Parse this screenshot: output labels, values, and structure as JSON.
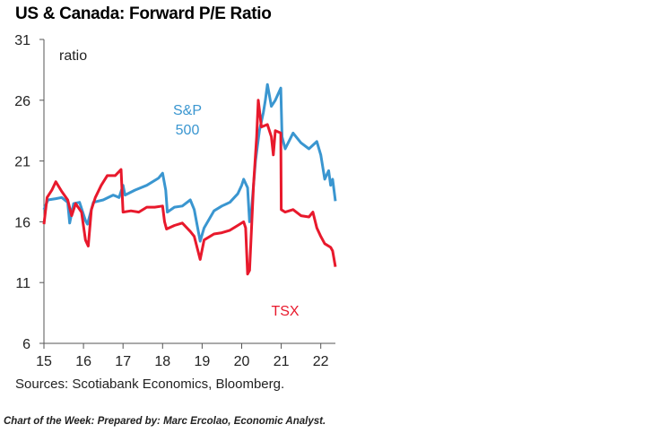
{
  "chart_data": {
    "type": "line",
    "title": "US & Canada: Forward P/E Ratio",
    "ylabel": "ratio",
    "xlabel": "",
    "ylim": [
      6,
      31
    ],
    "yticks": [
      6,
      11,
      16,
      21,
      26,
      31
    ],
    "xlim": [
      2015,
      2022.37
    ],
    "xticks": [
      2015,
      2016,
      2017,
      2018,
      2019,
      2020,
      2021,
      2022
    ],
    "xtick_labels": [
      "15",
      "16",
      "17",
      "18",
      "19",
      "20",
      "21",
      "22"
    ],
    "grid": false,
    "series": [
      {
        "name": "S&P 500",
        "label_lines": [
          "S&P",
          "500"
        ],
        "color": "#3a96d0",
        "x": [
          2015.0,
          2015.1,
          2015.3,
          2015.45,
          2015.6,
          2015.65,
          2015.75,
          2015.9,
          2016.05,
          2016.1,
          2016.25,
          2016.5,
          2016.75,
          2016.9,
          2017.0,
          2017.05,
          2017.3,
          2017.6,
          2017.9,
          2018.0,
          2018.08,
          2018.12,
          2018.3,
          2018.5,
          2018.7,
          2018.8,
          2018.95,
          2019.05,
          2019.3,
          2019.5,
          2019.7,
          2019.9,
          2020.0,
          2020.05,
          2020.15,
          2020.2,
          2020.25,
          2020.35,
          2020.45,
          2020.55,
          2020.6,
          2020.65,
          2020.75,
          2020.85,
          2020.99,
          2021.02,
          2021.1,
          2021.3,
          2021.5,
          2021.7,
          2021.9,
          2022.0,
          2022.1,
          2022.2,
          2022.25,
          2022.3,
          2022.37
        ],
        "values": [
          17.0,
          17.8,
          17.9,
          18.0,
          17.6,
          15.9,
          17.5,
          17.6,
          16.1,
          15.8,
          17.6,
          17.8,
          18.2,
          18.0,
          19.0,
          18.2,
          18.6,
          19.0,
          19.6,
          20.0,
          18.6,
          16.8,
          17.2,
          17.3,
          17.8,
          17.0,
          14.4,
          15.5,
          16.9,
          17.3,
          17.6,
          18.3,
          19.0,
          19.5,
          18.8,
          16.0,
          17.0,
          21.0,
          23.5,
          25.0,
          26.0,
          27.3,
          25.5,
          26.0,
          27.0,
          23.0,
          22.0,
          23.3,
          22.5,
          22.0,
          22.6,
          21.5,
          19.5,
          20.2,
          19.0,
          19.5,
          17.7
        ]
      },
      {
        "name": "TSX",
        "label_lines": [
          "TSX"
        ],
        "color": "#e8192c",
        "x": [
          2015.0,
          2015.08,
          2015.2,
          2015.3,
          2015.45,
          2015.6,
          2015.7,
          2015.8,
          2015.95,
          2016.05,
          2016.12,
          2016.2,
          2016.3,
          2016.45,
          2016.6,
          2016.8,
          2016.95,
          2017.0,
          2017.2,
          2017.4,
          2017.6,
          2017.8,
          2018.0,
          2018.05,
          2018.1,
          2018.3,
          2018.5,
          2018.7,
          2018.8,
          2018.95,
          2019.05,
          2019.3,
          2019.5,
          2019.7,
          2019.9,
          2020.05,
          2020.1,
          2020.15,
          2020.2,
          2020.3,
          2020.38,
          2020.42,
          2020.5,
          2020.65,
          2020.75,
          2020.8,
          2020.85,
          2020.99,
          2021.0,
          2021.1,
          2021.3,
          2021.5,
          2021.7,
          2021.8,
          2021.9,
          2022.0,
          2022.1,
          2022.25,
          2022.3,
          2022.37
        ],
        "values": [
          15.8,
          18.0,
          18.6,
          19.3,
          18.5,
          17.8,
          16.5,
          17.5,
          16.8,
          14.5,
          14.0,
          17.0,
          18.0,
          19.0,
          19.8,
          19.8,
          20.3,
          16.8,
          16.9,
          16.8,
          17.2,
          17.2,
          17.3,
          16.0,
          15.4,
          15.7,
          15.9,
          15.2,
          14.8,
          12.9,
          14.5,
          15.0,
          15.1,
          15.3,
          15.7,
          16.0,
          15.5,
          11.7,
          12.0,
          19.0,
          23.0,
          26.0,
          23.8,
          24.0,
          23.0,
          21.5,
          23.5,
          23.3,
          17.0,
          16.8,
          17.0,
          16.5,
          16.4,
          16.8,
          15.5,
          14.8,
          14.2,
          13.9,
          13.6,
          12.3
        ]
      }
    ]
  },
  "sources": "Sources: Scotiabank Economics, Bloomberg.",
  "footer": "Chart of the Week:  Prepared by: Marc Ercolao, Economic Analyst."
}
